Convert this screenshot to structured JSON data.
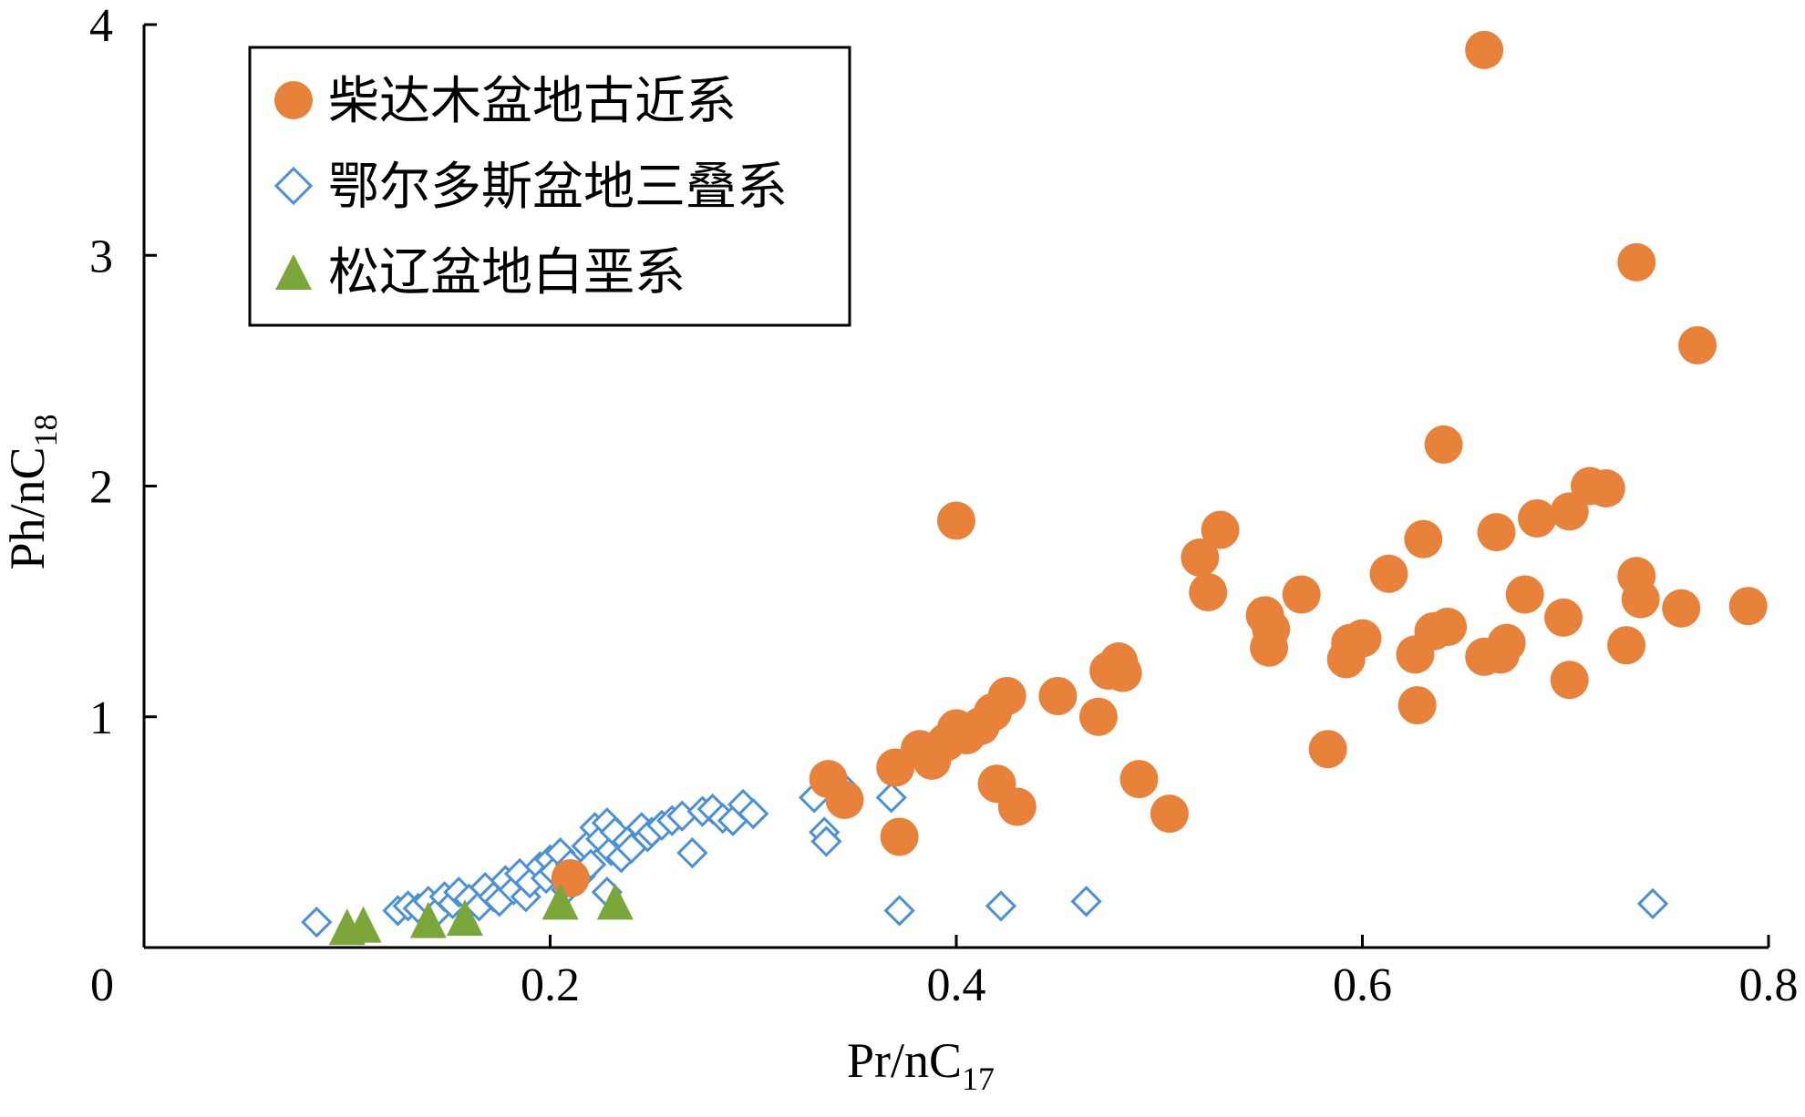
{
  "chart_data": {
    "type": "scatter",
    "xlabel": {
      "main": "Pr/nC",
      "sub": "17"
    },
    "ylabel": {
      "main": "Ph/nC",
      "sub": "18"
    },
    "xlim": [
      0,
      0.8
    ],
    "ylim": [
      0,
      4
    ],
    "x_ticks": [
      0,
      0.2,
      0.4,
      0.6,
      0.8
    ],
    "x_tick_labels": [
      "0",
      "0.2",
      "0.4",
      "0.6",
      "0.8"
    ],
    "y_ticks": [
      1,
      2,
      3,
      4
    ],
    "y_tick_labels": [
      "1",
      "2",
      "3",
      "4"
    ],
    "grid": false,
    "legend_position": "top-left",
    "series": [
      {
        "name": "柴达木盆地古近系",
        "marker": "circle",
        "color": "#E8823A",
        "points": [
          [
            0.66,
            3.89
          ],
          [
            0.735,
            2.97
          ],
          [
            0.765,
            2.61
          ],
          [
            0.64,
            2.18
          ],
          [
            0.4,
            1.85
          ],
          [
            0.53,
            1.81
          ],
          [
            0.52,
            1.69
          ],
          [
            0.524,
            1.54
          ],
          [
            0.552,
            1.44
          ],
          [
            0.555,
            1.38
          ],
          [
            0.554,
            1.3
          ],
          [
            0.57,
            1.53
          ],
          [
            0.592,
            1.25
          ],
          [
            0.594,
            1.32
          ],
          [
            0.6,
            1.34
          ],
          [
            0.613,
            1.62
          ],
          [
            0.626,
            1.27
          ],
          [
            0.63,
            1.77
          ],
          [
            0.635,
            1.37
          ],
          [
            0.642,
            1.39
          ],
          [
            0.627,
            1.05
          ],
          [
            0.66,
            1.26
          ],
          [
            0.666,
            1.8
          ],
          [
            0.668,
            1.27
          ],
          [
            0.671,
            1.32
          ],
          [
            0.68,
            1.53
          ],
          [
            0.686,
            1.86
          ],
          [
            0.699,
            1.43
          ],
          [
            0.702,
            1.89
          ],
          [
            0.712,
            2.0
          ],
          [
            0.72,
            1.99
          ],
          [
            0.702,
            1.16
          ],
          [
            0.73,
            1.31
          ],
          [
            0.735,
            1.61
          ],
          [
            0.737,
            1.51
          ],
          [
            0.757,
            1.47
          ],
          [
            0.79,
            1.48
          ],
          [
            0.583,
            0.86
          ],
          [
            0.37,
            0.78
          ],
          [
            0.382,
            0.86
          ],
          [
            0.388,
            0.81
          ],
          [
            0.395,
            0.89
          ],
          [
            0.4,
            0.95
          ],
          [
            0.405,
            0.92
          ],
          [
            0.412,
            0.96
          ],
          [
            0.418,
            1.02
          ],
          [
            0.425,
            1.09
          ],
          [
            0.45,
            1.09
          ],
          [
            0.47,
            1.0
          ],
          [
            0.475,
            1.2
          ],
          [
            0.48,
            1.24
          ],
          [
            0.482,
            1.19
          ],
          [
            0.49,
            0.73
          ],
          [
            0.505,
            0.58
          ],
          [
            0.42,
            0.71
          ],
          [
            0.43,
            0.61
          ],
          [
            0.337,
            0.73
          ],
          [
            0.345,
            0.64
          ],
          [
            0.372,
            0.48
          ],
          [
            0.21,
            0.3
          ]
        ]
      },
      {
        "name": "鄂尔多斯盆地三叠系",
        "marker": "diamond",
        "color": "#4A90D9",
        "points": [
          [
            0.085,
            0.11
          ],
          [
            0.125,
            0.16
          ],
          [
            0.13,
            0.18
          ],
          [
            0.135,
            0.17
          ],
          [
            0.14,
            0.2
          ],
          [
            0.145,
            0.16
          ],
          [
            0.148,
            0.22
          ],
          [
            0.152,
            0.19
          ],
          [
            0.155,
            0.24
          ],
          [
            0.16,
            0.21
          ],
          [
            0.165,
            0.18
          ],
          [
            0.168,
            0.26
          ],
          [
            0.172,
            0.22
          ],
          [
            0.175,
            0.2
          ],
          [
            0.178,
            0.29
          ],
          [
            0.182,
            0.25
          ],
          [
            0.185,
            0.32
          ],
          [
            0.188,
            0.22
          ],
          [
            0.19,
            0.28
          ],
          [
            0.195,
            0.35
          ],
          [
            0.198,
            0.3
          ],
          [
            0.2,
            0.38
          ],
          [
            0.202,
            0.33
          ],
          [
            0.205,
            0.41
          ],
          [
            0.208,
            0.25
          ],
          [
            0.21,
            0.36
          ],
          [
            0.212,
            0.29
          ],
          [
            0.215,
            0.31
          ],
          [
            0.218,
            0.44
          ],
          [
            0.22,
            0.36
          ],
          [
            0.222,
            0.52
          ],
          [
            0.225,
            0.47
          ],
          [
            0.228,
            0.54
          ],
          [
            0.23,
            0.42
          ],
          [
            0.232,
            0.5
          ],
          [
            0.235,
            0.39
          ],
          [
            0.238,
            0.46
          ],
          [
            0.24,
            0.43
          ],
          [
            0.245,
            0.52
          ],
          [
            0.248,
            0.48
          ],
          [
            0.25,
            0.5
          ],
          [
            0.255,
            0.53
          ],
          [
            0.26,
            0.55
          ],
          [
            0.265,
            0.57
          ],
          [
            0.27,
            0.41
          ],
          [
            0.275,
            0.59
          ],
          [
            0.28,
            0.6
          ],
          [
            0.285,
            0.56
          ],
          [
            0.29,
            0.55
          ],
          [
            0.295,
            0.62
          ],
          [
            0.3,
            0.58
          ],
          [
            0.33,
            0.65
          ],
          [
            0.335,
            0.5
          ],
          [
            0.336,
            0.46
          ],
          [
            0.345,
            0.69
          ],
          [
            0.368,
            0.65
          ],
          [
            0.372,
            0.16
          ],
          [
            0.422,
            0.18
          ],
          [
            0.464,
            0.2
          ],
          [
            0.743,
            0.19
          ],
          [
            0.228,
            0.24
          ]
        ]
      },
      {
        "name": "松辽盆地白垩系",
        "marker": "triangle",
        "color": "#7AA63A",
        "points": [
          [
            0.1,
            0.09
          ],
          [
            0.108,
            0.1
          ],
          [
            0.14,
            0.12
          ],
          [
            0.158,
            0.13
          ],
          [
            0.205,
            0.2
          ],
          [
            0.232,
            0.2
          ]
        ]
      }
    ]
  }
}
